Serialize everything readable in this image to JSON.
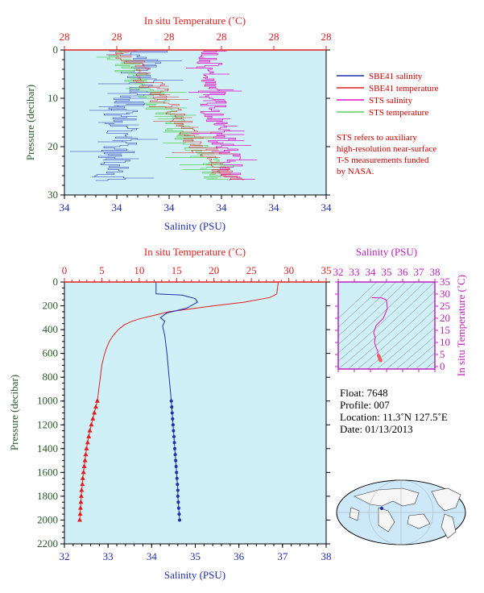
{
  "colors": {
    "salinity": "#1f2fb0",
    "temperature": "#e02020",
    "sts_salinity": "#e010c0",
    "sts_temperature": "#60d060",
    "pressure_axis": "#2a5a2a",
    "plot_bg": "#d0f0f8",
    "ts_axis": "#c020c0",
    "info_note": "#cc0000"
  },
  "chart_data": [
    {
      "type": "line",
      "panel": "near-surface",
      "title": "In situ Temperature (˚C)",
      "xlabel": "Salinity (PSU)",
      "ylabel": "Pressure (decibar)",
      "x_ticks_labels": [
        "34",
        "34",
        "34",
        "34",
        "34",
        "34"
      ],
      "top_ticks_labels": [
        "28",
        "28",
        "28",
        "28",
        "28",
        "28"
      ],
      "y_ticks": [
        0,
        10,
        20,
        30
      ],
      "ylim": [
        0,
        30
      ],
      "legend": {
        "placement": "right",
        "items": [
          {
            "label": "SBE41 salinity",
            "color": "#1f2fb0"
          },
          {
            "label": "SBE41 temperature",
            "color": "#e02020"
          },
          {
            "label": "STS salinity",
            "color": "#e010c0"
          },
          {
            "label": "STS temperature",
            "color": "#60d060"
          }
        ]
      },
      "note": [
        "STS refers to auxiliary",
        "high-resolution near-surface",
        "T-S measurements funded",
        "by NASA."
      ]
    },
    {
      "type": "line",
      "panel": "full-profile",
      "title": "In situ Temperature (˚C)",
      "xlabel": "Salinity (PSU)",
      "ylabel": "Pressure (decibar)",
      "xlim": [
        32,
        38
      ],
      "x_ticks": [
        32,
        33,
        34,
        35,
        36,
        37,
        38
      ],
      "top_xlim": [
        0,
        35
      ],
      "top_ticks": [
        0,
        5,
        10,
        15,
        20,
        25,
        30,
        35
      ],
      "ylim": [
        0,
        2200
      ],
      "y_ticks": [
        0,
        200,
        400,
        600,
        800,
        1000,
        1200,
        1400,
        1600,
        1800,
        2000,
        2200
      ],
      "series": [
        {
          "name": "",
          "axis": "temperature",
          "color": "#e02020",
          "points": [
            [
              28.6,
              0
            ],
            [
              28.5,
              50
            ],
            [
              28.4,
              100
            ],
            [
              27.5,
              130
            ],
            [
              24,
              170
            ],
            [
              20,
              200
            ],
            [
              17,
              225
            ],
            [
              14,
              250
            ],
            [
              12,
              280
            ],
            [
              10,
              310
            ],
            [
              9,
              330
            ],
            [
              8,
              360
            ],
            [
              7.2,
              400
            ],
            [
              6.5,
              450
            ],
            [
              6.0,
              500
            ],
            [
              5.6,
              560
            ],
            [
              5.3,
              620
            ],
            [
              5.0,
              700
            ],
            [
              4.8,
              800
            ],
            [
              4.6,
              900
            ],
            [
              4.4,
              1000
            ]
          ]
        },
        {
          "name": "",
          "axis": "salinity",
          "color": "#1f2fb0",
          "points": [
            [
              34.1,
              0
            ],
            [
              34.1,
              100
            ],
            [
              34.7,
              110
            ],
            [
              35.0,
              140
            ],
            [
              35.05,
              170
            ],
            [
              34.8,
              220
            ],
            [
              34.35,
              260
            ],
            [
              34.2,
              300
            ],
            [
              34.3,
              330
            ],
            [
              34.25,
              370
            ],
            [
              34.3,
              450
            ],
            [
              34.35,
              600
            ],
            [
              34.4,
              800
            ],
            [
              34.45,
              1000
            ]
          ]
        },
        {
          "name": "",
          "axis": "temperature",
          "color": "#e02020",
          "marker": "triangle",
          "points": [
            [
              4.4,
              1000
            ],
            [
              4.2,
              1050
            ],
            [
              4.0,
              1100
            ],
            [
              3.8,
              1150
            ],
            [
              3.6,
              1200
            ],
            [
              3.4,
              1250
            ],
            [
              3.25,
              1300
            ],
            [
              3.1,
              1350
            ],
            [
              2.95,
              1400
            ],
            [
              2.85,
              1450
            ],
            [
              2.75,
              1500
            ],
            [
              2.65,
              1550
            ],
            [
              2.55,
              1600
            ],
            [
              2.45,
              1650
            ],
            [
              2.4,
              1700
            ],
            [
              2.3,
              1750
            ],
            [
              2.25,
              1800
            ],
            [
              2.2,
              1850
            ],
            [
              2.15,
              1900
            ],
            [
              2.1,
              1950
            ],
            [
              2.05,
              2000
            ]
          ]
        },
        {
          "name": "",
          "axis": "salinity",
          "color": "#1f2fb0",
          "marker": "circle",
          "points": [
            [
              34.45,
              1000
            ],
            [
              34.46,
              1050
            ],
            [
              34.47,
              1100
            ],
            [
              34.48,
              1150
            ],
            [
              34.49,
              1200
            ],
            [
              34.5,
              1250
            ],
            [
              34.51,
              1300
            ],
            [
              34.52,
              1350
            ],
            [
              34.53,
              1400
            ],
            [
              34.54,
              1450
            ],
            [
              34.55,
              1500
            ],
            [
              34.56,
              1550
            ],
            [
              34.57,
              1600
            ],
            [
              34.58,
              1650
            ],
            [
              34.59,
              1700
            ],
            [
              34.6,
              1750
            ],
            [
              34.6,
              1800
            ],
            [
              34.61,
              1850
            ],
            [
              34.62,
              1900
            ],
            [
              34.63,
              1950
            ],
            [
              34.64,
              2000
            ]
          ]
        }
      ]
    },
    {
      "type": "line",
      "panel": "ts-diagram",
      "title": "Salinity (PSU)",
      "ylabel": "In situ Temperature (˚C)",
      "xlim": [
        32,
        38
      ],
      "x_ticks": [
        32,
        33,
        34,
        35,
        36,
        37,
        38
      ],
      "ylim": [
        -1,
        35
      ],
      "y_ticks": [
        0,
        5,
        10,
        15,
        20,
        25,
        30,
        35
      ]
    }
  ],
  "info": {
    "float": "Float:  7648",
    "profile": "Profile:  007",
    "location": "Location:  11.3˚N  127.5˚E",
    "date": "Date:  01/13/2013"
  },
  "map": {
    "label": ""
  }
}
